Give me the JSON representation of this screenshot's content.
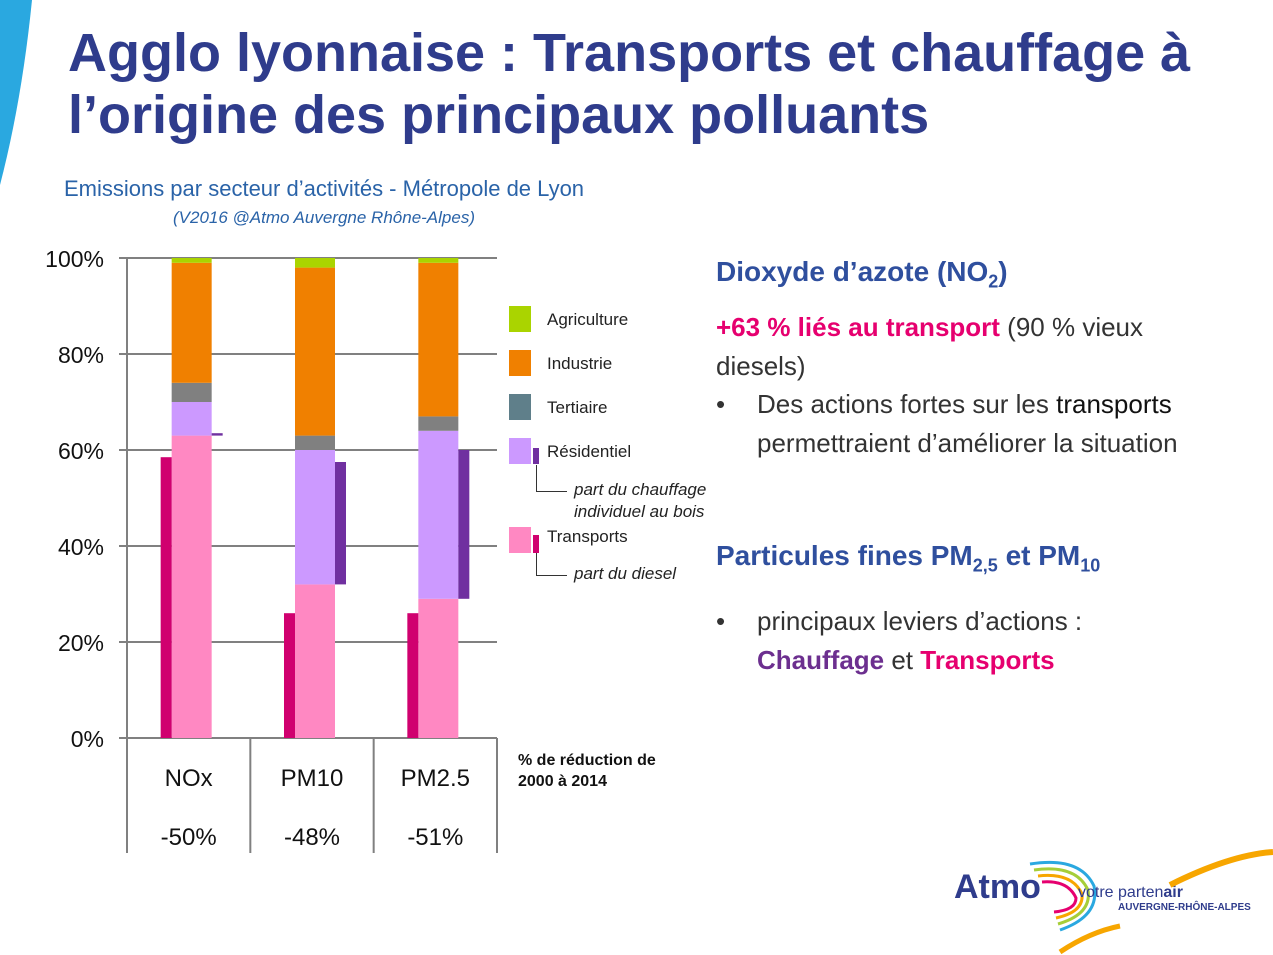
{
  "title": "Agglo lyonnaise : Transports et chauffage à l’origine des principaux polluants",
  "chart_data": {
    "type": "bar",
    "stacked": true,
    "title": "Emissions par secteur d’activités - Métropole de Lyon",
    "subtitle": "(V2016 @Atmo Auvergne Rhône-Alpes)",
    "categories": [
      "NOx",
      "PM10",
      "PM2.5"
    ],
    "reductions": [
      "-50%",
      "-48%",
      "-51%"
    ],
    "reduction_label": "% de réduction de 2000 à 2014",
    "yticks": [
      "0%",
      "20%",
      "40%",
      "60%",
      "80%",
      "100%"
    ],
    "ylim": [
      0,
      100
    ],
    "grid": true,
    "legend_position": "right",
    "series": [
      {
        "name": "Transports",
        "values": [
          63,
          32,
          29
        ],
        "color": "#ff88c2"
      },
      {
        "name": "Résidentiel",
        "values": [
          7,
          28,
          35
        ],
        "color": "#cc99ff"
      },
      {
        "name": "Tertiaire",
        "values": [
          4,
          3,
          3
        ],
        "color": "#808080"
      },
      {
        "name": "Industrie",
        "values": [
          25,
          35,
          32
        ],
        "color": "#f08000"
      },
      {
        "name": "Agriculture",
        "values": [
          1,
          2,
          1
        ],
        "color": "#aad400"
      }
    ],
    "sub_series": [
      {
        "name": "part du diesel",
        "color": "#d0006f",
        "ranges": [
          [
            0,
            58.5
          ],
          [
            0,
            26
          ],
          [
            0,
            26
          ]
        ]
      },
      {
        "name": "part du chauffage individuel au bois",
        "color": "#7030a0",
        "ranges": [
          [
            63,
            63.5
          ],
          [
            32,
            57.5
          ],
          [
            29,
            60
          ]
        ]
      }
    ]
  },
  "legend": {
    "agriculture": "Agriculture",
    "industrie": "Industrie",
    "tertiaire": "Tertiaire",
    "residentiel": "Résidentiel",
    "chauffage_line1": "part du chauffage",
    "chauffage_line2": "individuel au bois",
    "transports": "Transports",
    "diesel": "part du diesel"
  },
  "no2": {
    "heading": "Dioxyde d’azote (NO",
    "sub": "2",
    "heading_end": ")",
    "highlight": "+63 % liés au transport",
    "rest_line1": " (90 % vieux",
    "rest_line2": "diesels)",
    "bullet_line1": "Des actions fortes sur les",
    "bullet_word": "transports",
    "bullet_line2": "permettraient d’améliorer la situation"
  },
  "pm": {
    "heading_a": "Particules fines PM",
    "sub_a": "2,5",
    "heading_b": " et PM",
    "sub_b": "10",
    "bullet_line1": "principaux leviers d’actions :",
    "chauffage": "Chauffage",
    "et": " et ",
    "transports": "Transports"
  },
  "logo": {
    "name": "Atmo",
    "tag_a": "votre parten",
    "tag_b": "air",
    "region": "AUVERGNE-RHÔNE-ALPES"
  },
  "colors": {
    "title": "#2f3c8c",
    "heading": "#2f4f9e",
    "pink": "#e6006f",
    "purple": "#6c2f8f"
  }
}
